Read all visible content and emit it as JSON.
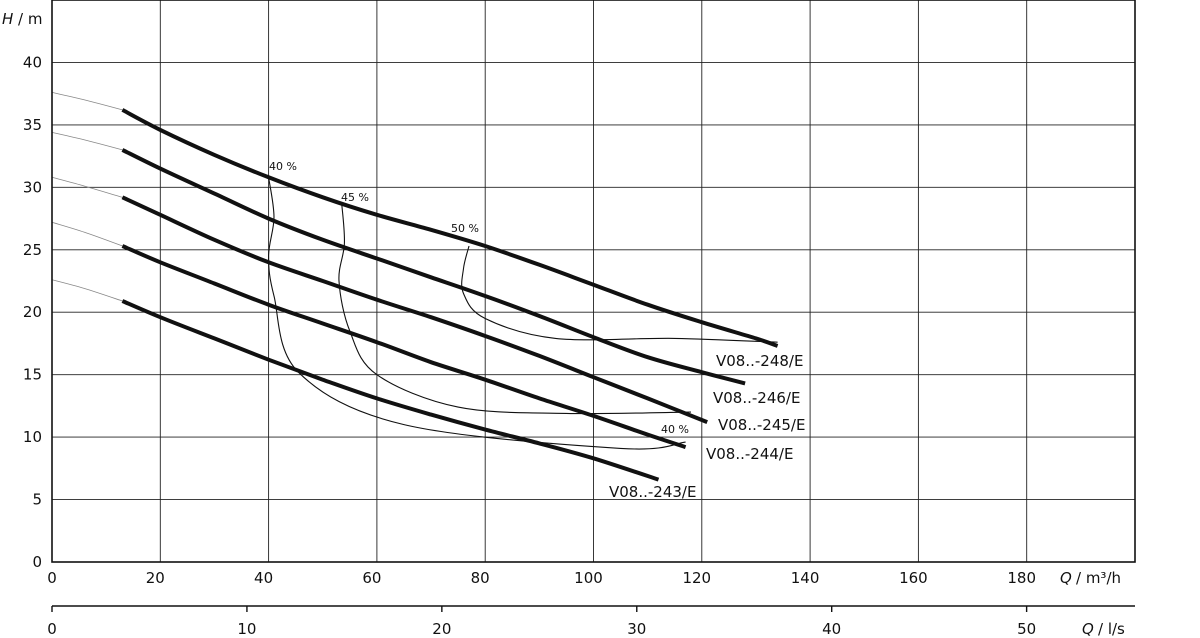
{
  "chart_data": {
    "type": "line",
    "title": "",
    "ylabel": {
      "symbol": "H",
      "unit": "/ m"
    },
    "xlabel": {
      "symbol": "Q",
      "unit": "/ m³/h"
    },
    "x2label": {
      "symbol": "Q",
      "unit": "/ l/s"
    },
    "xlim": [
      0,
      200
    ],
    "ylim": [
      0,
      45
    ],
    "x2lim": [
      0,
      55.56
    ],
    "x_ticks": [
      0,
      20,
      40,
      60,
      80,
      100,
      120,
      140,
      160,
      180
    ],
    "y_ticks": [
      0,
      5,
      10,
      15,
      20,
      25,
      30,
      35,
      40
    ],
    "x2_ticks": [
      0,
      10,
      20,
      30,
      40,
      50
    ],
    "grid": true,
    "series": [
      {
        "name": "V08..-248/E",
        "x": [
          13,
          20,
          30,
          40,
          50,
          60,
          70,
          80,
          90,
          100,
          110,
          120,
          130,
          134
        ],
        "y": [
          36.2,
          34.6,
          32.6,
          30.8,
          29.2,
          27.8,
          26.6,
          25.3,
          23.8,
          22.2,
          20.6,
          19.2,
          17.9,
          17.3
        ]
      },
      {
        "name": "V08..-246/E",
        "x": [
          13,
          20,
          30,
          40,
          50,
          60,
          70,
          80,
          90,
          100,
          110,
          120,
          128
        ],
        "y": [
          33.0,
          31.5,
          29.5,
          27.5,
          25.8,
          24.3,
          22.8,
          21.3,
          19.7,
          18.0,
          16.4,
          15.2,
          14.3
        ]
      },
      {
        "name": "V08..-245/E",
        "x": [
          13,
          20,
          30,
          40,
          50,
          60,
          70,
          80,
          90,
          100,
          110,
          121
        ],
        "y": [
          29.2,
          27.8,
          25.8,
          24.0,
          22.5,
          21.0,
          19.6,
          18.1,
          16.5,
          14.8,
          13.1,
          11.2
        ]
      },
      {
        "name": "V08..-244/E",
        "x": [
          13,
          20,
          30,
          40,
          50,
          60,
          70,
          80,
          90,
          100,
          110,
          117
        ],
        "y": [
          25.3,
          24.0,
          22.3,
          20.6,
          19.1,
          17.6,
          16.0,
          14.6,
          13.1,
          11.7,
          10.2,
          9.2
        ]
      },
      {
        "name": "V08..-243/E",
        "x": [
          13,
          20,
          30,
          40,
          50,
          60,
          70,
          80,
          90,
          100,
          112
        ],
        "y": [
          20.9,
          19.6,
          17.9,
          16.2,
          14.6,
          13.1,
          11.8,
          10.6,
          9.5,
          8.3,
          6.6
        ]
      }
    ],
    "thin_extensions": [
      {
        "x": [
          0,
          6,
          13
        ],
        "y": [
          37.6,
          37.0,
          36.2
        ]
      },
      {
        "x": [
          0,
          6,
          13
        ],
        "y": [
          34.4,
          33.8,
          33.0
        ]
      },
      {
        "x": [
          0,
          6,
          13
        ],
        "y": [
          30.8,
          30.1,
          29.2
        ]
      },
      {
        "x": [
          0,
          6,
          13
        ],
        "y": [
          27.2,
          26.4,
          25.3
        ]
      },
      {
        "x": [
          0,
          6,
          13
        ],
        "y": [
          22.6,
          21.9,
          20.9
        ]
      }
    ],
    "efficiency_lines": [
      {
        "label": "40 %",
        "x": [
          40,
          41,
          40,
          41,
          45.5,
          65,
          105,
          117
        ],
        "y": [
          30.8,
          27.6,
          24.5,
          21.3,
          15.2,
          11.0,
          9.1,
          9.6
        ]
      },
      {
        "label": "45 %",
        "x": [
          53.5,
          54,
          53,
          55,
          60,
          75,
          95,
          118
        ],
        "y": [
          28.7,
          25.5,
          22.5,
          18.5,
          15.0,
          12.4,
          11.9,
          12.0
        ]
      },
      {
        "label": "50 %",
        "x": [
          77,
          76,
          76,
          80,
          93,
          115,
          134
        ],
        "y": [
          25.3,
          23.5,
          21.5,
          19.5,
          17.9,
          17.9,
          17.6
        ]
      }
    ],
    "curve_labels": [
      "V08..-248/E",
      "V08..-246/E",
      "V08..-245/E",
      "V08..-244/E",
      "V08..-243/E"
    ],
    "efficiency_labels": [
      "40 %",
      "45 %",
      "50 %",
      "40 %"
    ]
  }
}
